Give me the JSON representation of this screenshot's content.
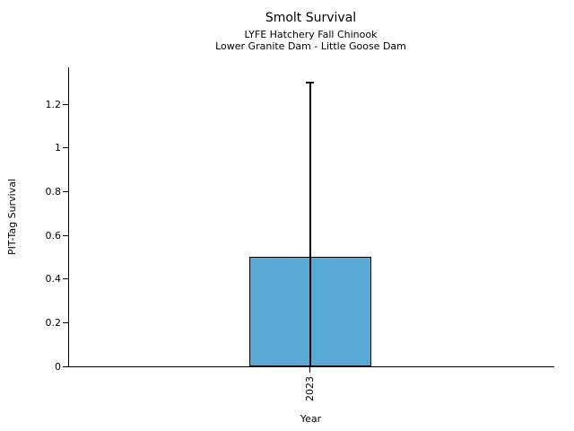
{
  "chart_data": {
    "type": "bar",
    "title": "Smolt Survival",
    "subtitle_lines": [
      "LYFE Hatchery Fall Chinook",
      "Lower Granite Dam - Little Goose Dam"
    ],
    "xlabel": "Year",
    "ylabel": "PIT-Tag Survival",
    "categories": [
      "2023"
    ],
    "values": [
      0.5
    ],
    "error_bars": [
      {
        "low": 0.0,
        "high": 1.3,
        "cap": "top"
      }
    ],
    "yticks": [
      0,
      0.2,
      0.4,
      0.6,
      0.8,
      1.0,
      1.2
    ],
    "ytick_labels": [
      "0",
      "0.2",
      "0.4",
      "0.6",
      "0.8",
      "1",
      "1.2"
    ],
    "ylim": [
      0,
      1.37
    ],
    "xtick_rotation_deg": 90,
    "grid": false,
    "legend": "none",
    "colors": {
      "bar_fill": "#58aad4",
      "bar_edge": "#000000",
      "axis": "#000000",
      "text": "#000000",
      "background": "#ffffff"
    }
  }
}
